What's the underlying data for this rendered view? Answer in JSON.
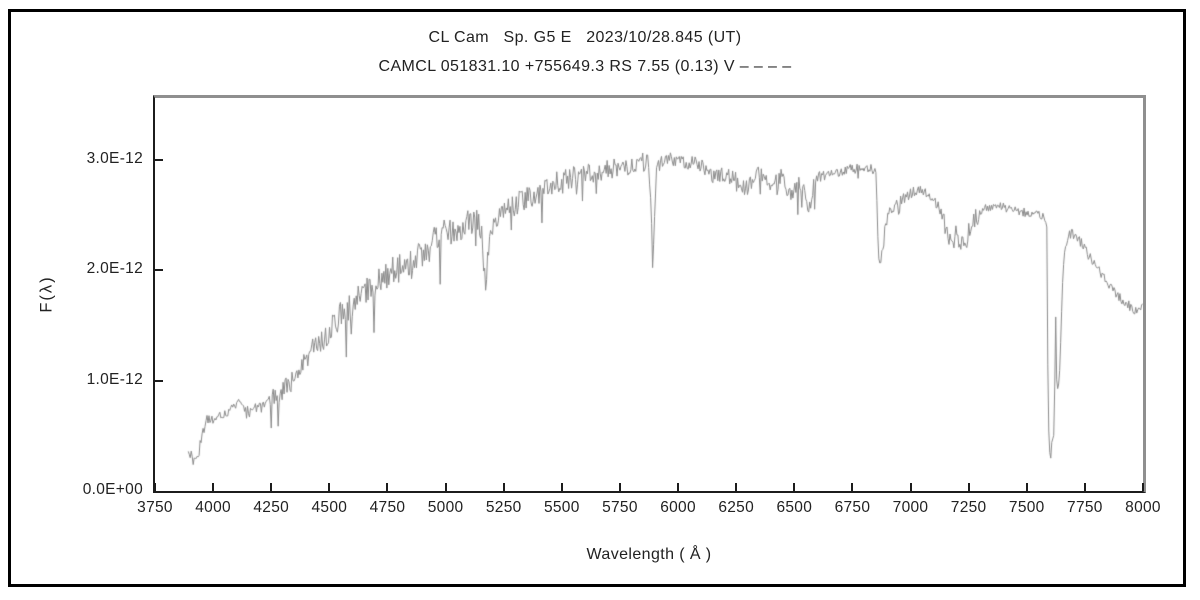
{
  "window": {
    "background": "#ffffff",
    "outer_border_color": "#000000"
  },
  "chart_data": {
    "type": "line",
    "title": "CL Cam   Sp. G5 E   2023/10/28.845 (UT)",
    "subtitle": "CAMCL 051831.10 +755649.3 RS 7.55 (0.13) V – – – –",
    "xlabel": "Wavelength ( Å )",
    "ylabel": "F(λ)",
    "xlim": [
      3750,
      8000
    ],
    "ylim": [
      0,
      3.56e-12
    ],
    "grid": false,
    "legend": null,
    "line_color": "#8a8a8a",
    "axis_color": "#1c1c1c",
    "frame_light_color": "#8f8f8f",
    "xticks": [
      3750,
      4000,
      4250,
      4500,
      4750,
      5000,
      5250,
      5500,
      5750,
      6000,
      6250,
      6500,
      6750,
      7000,
      7250,
      7500,
      7750,
      8000
    ],
    "yticks": [
      {
        "value": 0.0,
        "label": "0.0E+00",
        "draw_tick": false
      },
      {
        "value": 1.0,
        "label": "1.0E-12",
        "draw_tick": true
      },
      {
        "value": 2.0,
        "label": "2.0E-12",
        "draw_tick": true
      },
      {
        "value": 3.0,
        "label": "3.0E-12",
        "draw_tick": true
      }
    ],
    "flux_unit_scale": 1e-12,
    "wavelength_range_of_data": [
      3893,
      8000
    ],
    "visible_absorption_dips_angstrom": [
      5172,
      5892,
      6563,
      6866,
      7186,
      7604
    ],
    "sample_step_angstrom": 4.25,
    "noise_seed": 20231028,
    "series": [
      {
        "name": "CL Cam spectrum",
        "envelope_points": [
          [
            3893,
            0.33
          ],
          [
            3900,
            0.28
          ],
          [
            3908,
            0.35
          ],
          [
            3916,
            0.26
          ],
          [
            3925,
            0.3
          ],
          [
            3935,
            0.33
          ],
          [
            3945,
            0.42
          ],
          [
            3955,
            0.52
          ],
          [
            3965,
            0.6
          ],
          [
            3975,
            0.66
          ],
          [
            3985,
            0.66
          ],
          [
            4000,
            0.65
          ],
          [
            4020,
            0.66
          ],
          [
            4040,
            0.68
          ],
          [
            4060,
            0.7
          ],
          [
            4080,
            0.74
          ],
          [
            4100,
            0.8
          ],
          [
            4115,
            0.78
          ],
          [
            4130,
            0.73
          ],
          [
            4150,
            0.74
          ],
          [
            4170,
            0.76
          ],
          [
            4190,
            0.76
          ],
          [
            4210,
            0.78
          ],
          [
            4230,
            0.82
          ],
          [
            4250,
            0.86
          ],
          [
            4270,
            0.83
          ],
          [
            4290,
            0.88
          ],
          [
            4310,
            0.92
          ],
          [
            4330,
            0.96
          ],
          [
            4350,
            1.0
          ],
          [
            4375,
            1.08
          ],
          [
            4400,
            1.18
          ],
          [
            4425,
            1.26
          ],
          [
            4450,
            1.32
          ],
          [
            4475,
            1.4
          ],
          [
            4500,
            1.47
          ],
          [
            4530,
            1.55
          ],
          [
            4560,
            1.62
          ],
          [
            4590,
            1.68
          ],
          [
            4620,
            1.74
          ],
          [
            4650,
            1.8
          ],
          [
            4680,
            1.86
          ],
          [
            4710,
            1.9
          ],
          [
            4740,
            1.95
          ],
          [
            4770,
            1.99
          ],
          [
            4800,
            2.03
          ],
          [
            4830,
            2.08
          ],
          [
            4861,
            2.05
          ],
          [
            4890,
            2.15
          ],
          [
            4920,
            2.2
          ],
          [
            4950,
            2.25
          ],
          [
            4980,
            2.3
          ],
          [
            5010,
            2.34
          ],
          [
            5040,
            2.38
          ],
          [
            5070,
            2.4
          ],
          [
            5100,
            2.42
          ],
          [
            5130,
            2.42
          ],
          [
            5155,
            2.38
          ],
          [
            5167,
            1.95
          ],
          [
            5172,
            1.82
          ],
          [
            5180,
            2.1
          ],
          [
            5195,
            2.35
          ],
          [
            5220,
            2.48
          ],
          [
            5260,
            2.54
          ],
          [
            5300,
            2.6
          ],
          [
            5350,
            2.66
          ],
          [
            5400,
            2.71
          ],
          [
            5450,
            2.76
          ],
          [
            5500,
            2.8
          ],
          [
            5550,
            2.84
          ],
          [
            5600,
            2.87
          ],
          [
            5650,
            2.89
          ],
          [
            5700,
            2.91
          ],
          [
            5750,
            2.93
          ],
          [
            5800,
            2.96
          ],
          [
            5840,
            2.98
          ],
          [
            5875,
            2.96
          ],
          [
            5886,
            2.35
          ],
          [
            5892,
            2.1
          ],
          [
            5899,
            2.4
          ],
          [
            5908,
            2.9
          ],
          [
            5925,
            2.97
          ],
          [
            5950,
            3.0
          ],
          [
            5975,
            3.01
          ],
          [
            6000,
            3.0
          ],
          [
            6040,
            2.98
          ],
          [
            6080,
            2.96
          ],
          [
            6120,
            2.9
          ],
          [
            6150,
            2.84
          ],
          [
            6180,
            2.86
          ],
          [
            6210,
            2.85
          ],
          [
            6240,
            2.84
          ],
          [
            6270,
            2.76
          ],
          [
            6290,
            2.73
          ],
          [
            6310,
            2.8
          ],
          [
            6340,
            2.86
          ],
          [
            6370,
            2.88
          ],
          [
            6395,
            2.76
          ],
          [
            6420,
            2.86
          ],
          [
            6450,
            2.84
          ],
          [
            6470,
            2.74
          ],
          [
            6490,
            2.66
          ],
          [
            6510,
            2.8
          ],
          [
            6530,
            2.78
          ],
          [
            6548,
            2.7
          ],
          [
            6563,
            2.52
          ],
          [
            6578,
            2.72
          ],
          [
            6600,
            2.84
          ],
          [
            6640,
            2.87
          ],
          [
            6680,
            2.89
          ],
          [
            6720,
            2.91
          ],
          [
            6760,
            2.92
          ],
          [
            6800,
            2.93
          ],
          [
            6830,
            2.93
          ],
          [
            6852,
            2.88
          ],
          [
            6860,
            2.3
          ],
          [
            6866,
            2.02
          ],
          [
            6872,
            2.08
          ],
          [
            6880,
            2.22
          ],
          [
            6890,
            2.38
          ],
          [
            6902,
            2.48
          ],
          [
            6915,
            2.55
          ],
          [
            6930,
            2.58
          ],
          [
            6950,
            2.62
          ],
          [
            6975,
            2.66
          ],
          [
            7000,
            2.7
          ],
          [
            7030,
            2.72
          ],
          [
            7060,
            2.7
          ],
          [
            7090,
            2.66
          ],
          [
            7115,
            2.6
          ],
          [
            7140,
            2.48
          ],
          [
            7158,
            2.32
          ],
          [
            7172,
            2.28
          ],
          [
            7186,
            2.22
          ],
          [
            7200,
            2.36
          ],
          [
            7212,
            2.24
          ],
          [
            7226,
            2.3
          ],
          [
            7240,
            2.28
          ],
          [
            7255,
            2.38
          ],
          [
            7270,
            2.44
          ],
          [
            7290,
            2.5
          ],
          [
            7315,
            2.55
          ],
          [
            7345,
            2.58
          ],
          [
            7380,
            2.58
          ],
          [
            7420,
            2.56
          ],
          [
            7460,
            2.54
          ],
          [
            7500,
            2.52
          ],
          [
            7535,
            2.5
          ],
          [
            7560,
            2.5
          ],
          [
            7572,
            2.47
          ],
          [
            7582,
            2.42
          ],
          [
            7588,
            2.35
          ],
          [
            7590,
            1.2
          ],
          [
            7594,
            0.55
          ],
          [
            7599,
            0.38
          ],
          [
            7604,
            0.32
          ],
          [
            7609,
            0.45
          ],
          [
            7614,
            0.55
          ],
          [
            7618,
            0.5
          ],
          [
            7622,
            1.3
          ],
          [
            7625,
            1.65
          ],
          [
            7628,
            1.0
          ],
          [
            7632,
            0.98
          ],
          [
            7636,
            0.92
          ],
          [
            7641,
            1.05
          ],
          [
            7646,
            1.35
          ],
          [
            7651,
            1.7
          ],
          [
            7656,
            2.0
          ],
          [
            7661,
            2.18
          ],
          [
            7668,
            2.26
          ],
          [
            7680,
            2.3
          ],
          [
            7695,
            2.33
          ],
          [
            7710,
            2.31
          ],
          [
            7740,
            2.24
          ],
          [
            7770,
            2.12
          ],
          [
            7800,
            2.02
          ],
          [
            7830,
            1.94
          ],
          [
            7860,
            1.86
          ],
          [
            7890,
            1.77
          ],
          [
            7915,
            1.72
          ],
          [
            7940,
            1.68
          ],
          [
            7960,
            1.65
          ],
          [
            7980,
            1.64
          ],
          [
            8000,
            1.66
          ]
        ],
        "noise_regions": [
          [
            3893,
            3960,
            0.05,
            0.0
          ],
          [
            3960,
            4250,
            0.045,
            0.02
          ],
          [
            4250,
            4420,
            0.1,
            0.05
          ],
          [
            4420,
            4700,
            0.13,
            0.06
          ],
          [
            4700,
            5150,
            0.14,
            0.05
          ],
          [
            5150,
            5250,
            0.1,
            0.03
          ],
          [
            5250,
            5600,
            0.11,
            0.03
          ],
          [
            5600,
            5900,
            0.09,
            0.03
          ],
          [
            5900,
            6100,
            0.07,
            0.02
          ],
          [
            6100,
            6600,
            0.075,
            0.06
          ],
          [
            6600,
            6855,
            0.05,
            0.02
          ],
          [
            6855,
            7140,
            0.05,
            0.02
          ],
          [
            7140,
            7300,
            0.09,
            0.04
          ],
          [
            7300,
            7585,
            0.04,
            0.01
          ],
          [
            7585,
            7660,
            0.04,
            0.0
          ],
          [
            7660,
            7760,
            0.05,
            0.02
          ],
          [
            7760,
            8000,
            0.045,
            0.02
          ]
        ]
      }
    ]
  }
}
